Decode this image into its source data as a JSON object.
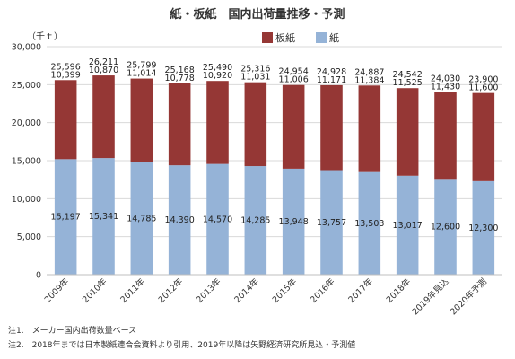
{
  "chart_data": {
    "type": "bar",
    "stacked": true,
    "title": "紙・板紙　国内出荷量推移・予測",
    "ylabel": "（千ｔ）",
    "ylim": [
      0,
      30000
    ],
    "yticks": [
      0,
      5000,
      10000,
      15000,
      20000,
      25000,
      30000
    ],
    "ytick_labels": [
      "0",
      "5,000",
      "10,000",
      "15,000",
      "20,000",
      "25,000",
      "30,000"
    ],
    "grid": true,
    "legend_position": "top",
    "categories": [
      "2009年",
      "2010年",
      "2011年",
      "2012年",
      "2013年",
      "2014年",
      "2015年",
      "2016年",
      "2017年",
      "2018年",
      "2019年見込",
      "2020年予測"
    ],
    "series": [
      {
        "name": "紙",
        "color": "#95b3d7",
        "values": [
          15197,
          15341,
          14785,
          14390,
          14570,
          14285,
          13948,
          13757,
          13503,
          13017,
          12600,
          12300
        ],
        "labels": [
          "15,197",
          "15,341",
          "14,785",
          "14,390",
          "14,570",
          "14,285",
          "13,948",
          "13,757",
          "13,503",
          "13,017",
          "12,600",
          "12,300"
        ]
      },
      {
        "name": "板紙",
        "color": "#953735",
        "values": [
          10399,
          10870,
          11014,
          10778,
          10920,
          11031,
          11006,
          11171,
          11384,
          11525,
          11430,
          11600
        ],
        "labels": [
          "10,399",
          "10,870",
          "11,014",
          "10,778",
          "10,920",
          "11,031",
          "11,006",
          "11,171",
          "11,384",
          "11,525",
          "11,430",
          "11,600"
        ]
      }
    ],
    "totals": [
      25596,
      26211,
      25799,
      25168,
      25490,
      25316,
      24954,
      24928,
      24887,
      24542,
      24030,
      23900
    ],
    "total_labels": [
      "25,596",
      "26,211",
      "25,799",
      "25,168",
      "25,490",
      "25,316",
      "24,954",
      "24,928",
      "24,887",
      "24,542",
      "24,030",
      "23,900"
    ]
  },
  "notes": [
    "注1.　メーカー国内出荷数量ベース",
    "注2.　2018年までは日本製紙連合会資料より引用、2019年以降は矢野経済研究所見込・予測値"
  ]
}
